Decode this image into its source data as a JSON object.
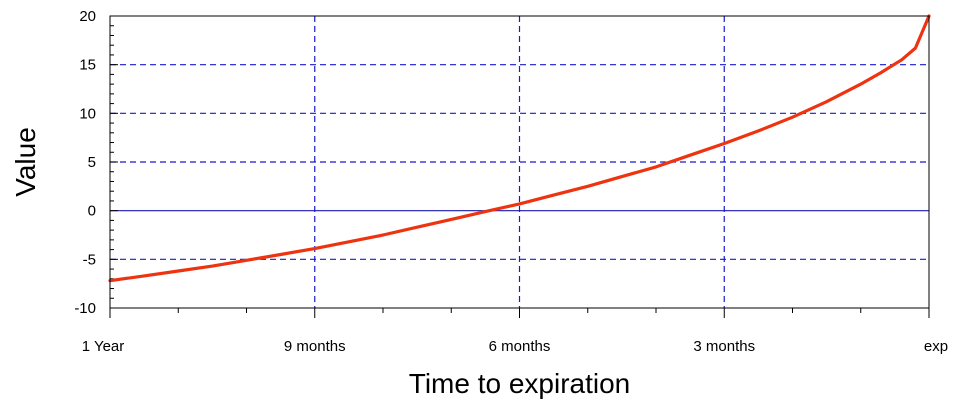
{
  "chart_data": {
    "type": "line",
    "title": "",
    "xlabel": "Time to expiration",
    "ylabel": "Value",
    "x_tick_labels": [
      "1 Year",
      "9 months",
      "6 months",
      "3 months",
      "exp"
    ],
    "y_ticks": [
      -10,
      -5,
      0,
      5,
      10,
      15,
      20
    ],
    "xlim": [
      0,
      12
    ],
    "ylim": [
      -10,
      20
    ],
    "grid": true,
    "colors": {
      "line": "#ee3311",
      "grid": "#1a1acc",
      "zero_line": "#1a1aaa",
      "frame": "#000000"
    },
    "series": [
      {
        "x": [
          0,
          0.5,
          1,
          1.5,
          2,
          2.5,
          3,
          3.5,
          4,
          4.5,
          5,
          5.5,
          6,
          6.5,
          7,
          7.5,
          8,
          8.5,
          9,
          9.5,
          10,
          10.5,
          11,
          11.3,
          11.6,
          11.8,
          12
        ],
        "values": [
          -7.2,
          -6.7,
          -6.2,
          -5.7,
          -5.1,
          -4.5,
          -3.9,
          -3.2,
          -2.5,
          -1.7,
          -0.9,
          -0.1,
          0.7,
          1.6,
          2.5,
          3.5,
          4.5,
          5.7,
          6.9,
          8.2,
          9.6,
          11.2,
          13.0,
          14.2,
          15.5,
          16.7,
          20.0
        ]
      }
    ]
  }
}
